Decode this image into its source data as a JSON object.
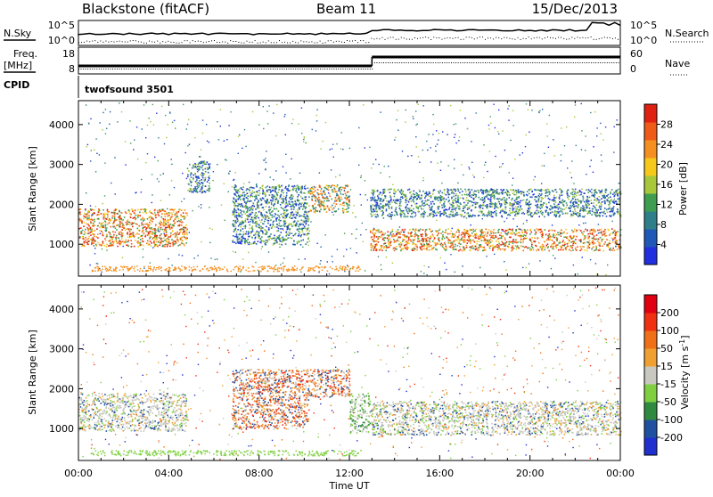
{
  "header": {
    "site": "Blackstone (fitACF)",
    "beam": "Beam 11",
    "date": "15/Dec/2013"
  },
  "side_labels": {
    "nsky": "N.Sky",
    "nsearch": "N.Search",
    "freq_line1": "Freq.",
    "freq_line2": "[MHz]",
    "nave": "Nave",
    "cpid": "CPID"
  },
  "small_axes": {
    "noise_ticks_left": [
      "10^5",
      "10^0"
    ],
    "noise_ticks_right": [
      "10^5",
      "10^0"
    ],
    "freq_ticks": [
      "18",
      "8"
    ],
    "nave_ticks": [
      "60",
      "0"
    ]
  },
  "cpid_label": "twofsound 3501",
  "chart_data": [
    {
      "type": "heatmap",
      "name": "power",
      "ylabel": "Slant Range [km]",
      "yticks": [
        "4000",
        "3000",
        "2000",
        "1000"
      ],
      "ylim": [
        200,
        4600
      ],
      "xlim": [
        0,
        24
      ],
      "colorbar": {
        "label": "Power [dB]",
        "ticks": [
          "28",
          "24",
          "20",
          "16",
          "12",
          "8",
          "4"
        ],
        "colors": [
          "#2030e0",
          "#2058b8",
          "#2f7f8a",
          "#3f9d50",
          "#a8c83a",
          "#f5c81a",
          "#f59020",
          "#f05a18",
          "#e02010"
        ]
      },
      "bands": [
        {
          "t": [
            0,
            4.8
          ],
          "r": [
            950,
            1900
          ],
          "level": "high"
        },
        {
          "t": [
            4.8,
            5.8
          ],
          "r": [
            2300,
            3100
          ],
          "level": "low"
        },
        {
          "t": [
            6.8,
            10.2
          ],
          "r": [
            1000,
            2500
          ],
          "level": "low"
        },
        {
          "t": [
            10.2,
            12.0
          ],
          "r": [
            1800,
            2500
          ],
          "level": "mid"
        },
        {
          "t": [
            12.9,
            24
          ],
          "r": [
            850,
            1400
          ],
          "level": "high"
        },
        {
          "t": [
            12.9,
            24
          ],
          "r": [
            1700,
            2400
          ],
          "level": "low"
        }
      ]
    },
    {
      "type": "heatmap",
      "name": "velocity",
      "ylabel": "Slant Range [km]",
      "yticks": [
        "4000",
        "3000",
        "2000",
        "1000"
      ],
      "ylim": [
        200,
        4600
      ],
      "xlim": [
        0,
        24
      ],
      "xlabel": "Time UT",
      "xticks": [
        "00:00",
        "04:00",
        "08:00",
        "12:00",
        "16:00",
        "20:00",
        "00:00"
      ],
      "colorbar": {
        "label": "Velocity [m s",
        "label_sup": "-1",
        "label_end": "]",
        "ticks": [
          "200",
          "100",
          "50",
          "15",
          "-15",
          "-50",
          "-100",
          "-200"
        ],
        "colors": [
          "#2030d0",
          "#2050a0",
          "#2f8a40",
          "#7ed040",
          "#c8c8c0",
          "#f0a030",
          "#f07018",
          "#f03010",
          "#e00010"
        ]
      },
      "bands": [
        {
          "t": [
            0,
            4.8
          ],
          "r": [
            950,
            1900
          ],
          "level": "gray"
        },
        {
          "t": [
            6.8,
            10.2
          ],
          "r": [
            1000,
            2500
          ],
          "level": "orange"
        },
        {
          "t": [
            10.2,
            12.0
          ],
          "r": [
            1800,
            2500
          ],
          "level": "orange"
        },
        {
          "t": [
            12.0,
            12.9
          ],
          "r": [
            900,
            1900
          ],
          "level": "green"
        },
        {
          "t": [
            12.9,
            24
          ],
          "r": [
            850,
            1700
          ],
          "level": "gray"
        }
      ]
    }
  ]
}
